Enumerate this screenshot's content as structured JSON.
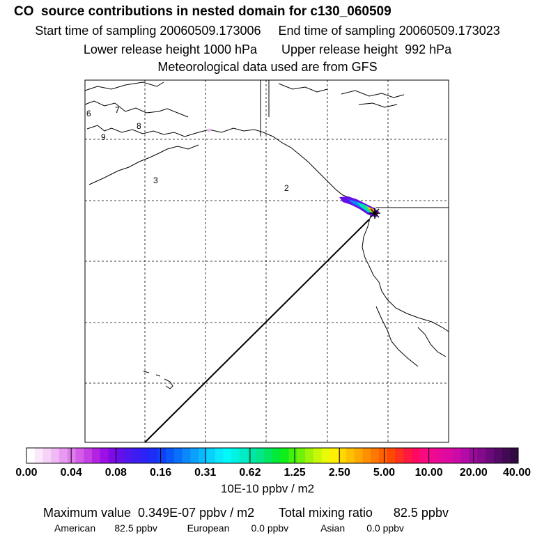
{
  "header": {
    "title": "CO  source contributions in nested domain for c130_060509",
    "sampling": "Start time of sampling 20060509.173006     End time of sampling 20060509.173023",
    "release": "Lower release height 1000 hPa       Upper release height  992 hPa",
    "met": "Meteorological data used are from GFS"
  },
  "map": {
    "region_labels": [
      "6",
      "7",
      "8",
      "9",
      "3",
      "2"
    ],
    "colors": {
      "frame": "#000000",
      "grid": "#000000",
      "coast": "#000000",
      "path": "#000000"
    }
  },
  "colorbar": {
    "labels": [
      "0.00",
      "0.04",
      "0.08",
      "0.16",
      "0.31",
      "0.62",
      "1.25",
      "2.50",
      "5.00",
      "10.00",
      "20.00",
      "40.00"
    ],
    "colors": [
      "#ffffff",
      "#fbe8fb",
      "#f6d2f8",
      "#f0b8f4",
      "#e79af0",
      "#de7cec",
      "#d35de8",
      "#c43fe4",
      "#b322e2",
      "#9a10e6",
      "#7f0ae6",
      "#6410ea",
      "#4c18ee",
      "#3a1df2",
      "#2a23f6",
      "#1c2df8",
      "#1040fa",
      "#0a58fc",
      "#0870fc",
      "#0a88fc",
      "#0aa0fc",
      "#0ab8fc",
      "#0ad0fc",
      "#0ae8fc",
      "#00fafa",
      "#00f2e0",
      "#00ecc6",
      "#00e6a8",
      "#00e688",
      "#00e660",
      "#00ea38",
      "#10ee18",
      "#40f010",
      "#70f208",
      "#a0f408",
      "#c8f808",
      "#e8fa08",
      "#fff000",
      "#ffd800",
      "#ffc000",
      "#ffa800",
      "#ff9000",
      "#ff7800",
      "#ff6000",
      "#ff4800",
      "#ff3020",
      "#ff1840",
      "#ff0a60",
      "#fa0a80",
      "#f00a90",
      "#e60a98",
      "#dc0aa0",
      "#cc0aa8",
      "#b40aa8",
      "#9c0a9c",
      "#840a8c",
      "#6c0a7c",
      "#560a68",
      "#420a54",
      "#300a40"
    ],
    "units": "10E-10 ppbv / m2"
  },
  "stats": {
    "line1": "Maximum value  0.349E-07 ppbv / m2       Total mixing ratio      82.5 ppbv",
    "line2": "American       82.5 ppbv           European        0.0 ppbv            Asian        0.0 ppbv"
  }
}
